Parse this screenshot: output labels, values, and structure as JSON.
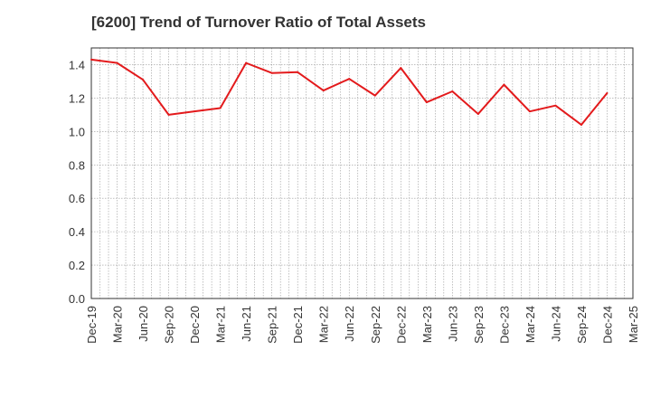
{
  "chart_data": {
    "type": "line",
    "title": "[6200]  Trend of Turnover Ratio of Total Assets",
    "xlabel": "",
    "ylabel": "",
    "categories": [
      "Dec-19",
      "Mar-20",
      "Jun-20",
      "Sep-20",
      "Dec-20",
      "Mar-21",
      "Jun-21",
      "Sep-21",
      "Dec-21",
      "Mar-22",
      "Jun-22",
      "Sep-22",
      "Dec-22",
      "Mar-23",
      "Jun-23",
      "Sep-23",
      "Dec-23",
      "Mar-24",
      "Jun-24",
      "Sep-24",
      "Dec-24",
      "Mar-25"
    ],
    "series": [
      {
        "values": [
          1.43,
          1.41,
          1.31,
          1.1,
          1.12,
          1.14,
          1.41,
          1.35,
          1.355,
          1.245,
          1.315,
          1.215,
          1.38,
          1.175,
          1.24,
          1.105,
          1.28,
          1.12,
          1.155,
          1.04,
          1.23,
          null
        ]
      }
    ],
    "yticks": [
      "0.0",
      "0.2",
      "0.4",
      "0.6",
      "0.8",
      "1.0",
      "1.2",
      "1.4"
    ],
    "ylim": [
      0,
      1.5
    ],
    "grid": true,
    "line_color": "#e31a1c",
    "grid_color": "#999999"
  }
}
